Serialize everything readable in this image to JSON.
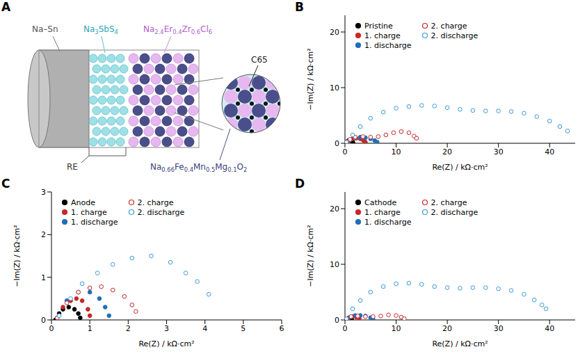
{
  "diagram": {
    "panel": "A",
    "labels": {
      "anode": "Na–Sn",
      "separator": "Na3SbS4",
      "catholyte": "Na2.4Er0.4Zr0.6Cl6",
      "carbon": "C65",
      "reference": "RE",
      "cathode": "Na0.66Fe0.4Mn0.5Mg0.1O2"
    }
  },
  "chart_data": [
    {
      "panel": "B",
      "type": "scatter",
      "x_label": "Re(Z) / kΩ·cm²",
      "y_label": "−Im(Z) / kΩ·cm²",
      "xlim": [
        0,
        45
      ],
      "xticks": [
        0,
        10,
        20,
        30,
        40
      ],
      "ylim": [
        0,
        23
      ],
      "yticks": [
        0,
        10,
        20
      ],
      "grid": false,
      "legend": "upper left",
      "series": [
        {
          "name": "Pristine",
          "color": "#000000",
          "marker": "circle",
          "x": [
            0.2,
            0.4,
            0.7,
            1.0,
            1.3,
            1.5,
            1.6
          ],
          "values": [
            0,
            0.3,
            0.5,
            0.55,
            0.45,
            0.25,
            0.05
          ]
        },
        {
          "name": "1. charge",
          "color": "#c62828",
          "marker": "circle",
          "x": [
            0.3,
            0.8,
            1.5,
            2.2,
            3,
            3.6,
            4
          ],
          "values": [
            0.1,
            0.5,
            0.8,
            0.9,
            0.8,
            0.5,
            0.2
          ]
        },
        {
          "name": "1. discharge",
          "color": "#1f6fb8",
          "marker": "circle",
          "x": [
            0.3,
            1,
            2,
            3,
            4,
            5,
            5.8,
            6.3
          ],
          "values": [
            0.1,
            0.6,
            1.0,
            1.1,
            1.0,
            0.8,
            0.5,
            0.2
          ]
        },
        {
          "name": "2. charge",
          "color": "#c62828",
          "marker": "open_circle",
          "x": [
            0.3,
            1,
            2,
            3.5,
            5,
            6.5,
            8,
            9.5,
            11,
            12.5,
            13.5,
            14
          ],
          "values": [
            0.1,
            0.7,
            1.1,
            1.2,
            1.1,
            1.2,
            1.5,
            1.9,
            2.1,
            1.9,
            1.3,
            0.9
          ]
        },
        {
          "name": "2. discharge",
          "color": "#3a9ad9",
          "marker": "open_circle",
          "x": [
            0.3,
            1.5,
            3,
            5,
            7.5,
            10,
            12.5,
            15,
            17.5,
            20,
            22.5,
            25,
            27.5,
            30,
            32.5,
            35,
            37.5,
            40,
            42,
            43.5
          ],
          "values": [
            0.2,
            1.5,
            3.0,
            4.5,
            5.6,
            6.3,
            6.6,
            6.8,
            6.7,
            6.4,
            6.1,
            5.9,
            5.8,
            5.8,
            5.7,
            5.4,
            4.8,
            4.0,
            3.0,
            2.2
          ]
        }
      ]
    },
    {
      "panel": "C",
      "type": "scatter",
      "x_label": "Re(Z) / kΩ·cm²",
      "y_label": "−Im(Z) / kΩ·cm²",
      "xlim": [
        0,
        6
      ],
      "xticks": [
        0,
        1,
        2,
        3,
        4,
        5,
        6
      ],
      "ylim": [
        0,
        3
      ],
      "yticks": [
        0,
        1,
        2,
        3
      ],
      "grid": false,
      "legend": "upper left",
      "series": [
        {
          "name": "Anode",
          "color": "#000000",
          "marker": "circle",
          "x": [
            0.1,
            0.2,
            0.3,
            0.45,
            0.6,
            0.7,
            0.75
          ],
          "values": [
            0,
            0.15,
            0.25,
            0.3,
            0.25,
            0.15,
            0.05
          ]
        },
        {
          "name": "1. charge",
          "color": "#c62828",
          "marker": "circle",
          "x": [
            0.15,
            0.3,
            0.5,
            0.65,
            0.8,
            0.95,
            1.0
          ],
          "values": [
            0.05,
            0.3,
            0.45,
            0.5,
            0.45,
            0.25,
            0.1
          ]
        },
        {
          "name": "1. discharge",
          "color": "#1f6fb8",
          "marker": "circle",
          "x": [
            0.15,
            0.4,
            0.7,
            1.0,
            1.25,
            1.4,
            1.5
          ],
          "values": [
            0.05,
            0.45,
            0.65,
            0.65,
            0.5,
            0.3,
            0.1
          ]
        },
        {
          "name": "2. charge",
          "color": "#c62828",
          "marker": "open_circle",
          "x": [
            0.15,
            0.4,
            0.7,
            1.0,
            1.3,
            1.6,
            1.9,
            2.1,
            2.2
          ],
          "values": [
            0.05,
            0.4,
            0.65,
            0.75,
            0.78,
            0.7,
            0.55,
            0.35,
            0.2
          ]
        },
        {
          "name": "2. discharge",
          "color": "#3a9ad9",
          "marker": "open_circle",
          "x": [
            0.2,
            0.5,
            0.8,
            1.2,
            1.6,
            2.1,
            2.6,
            3.1,
            3.5,
            3.8,
            4.1
          ],
          "values": [
            0.1,
            0.5,
            0.85,
            1.1,
            1.3,
            1.45,
            1.5,
            1.35,
            1.1,
            0.9,
            0.6
          ]
        }
      ]
    },
    {
      "panel": "D",
      "type": "scatter",
      "x_label": "Re(Z) / kΩ·cm²",
      "y_label": "−Im(Z) / kΩ·cm²",
      "xlim": [
        0,
        45
      ],
      "xticks": [
        0,
        10,
        20,
        30,
        40
      ],
      "ylim": [
        0,
        23
      ],
      "yticks": [
        0,
        10,
        20
      ],
      "grid": false,
      "legend": "upper left",
      "series": [
        {
          "name": "Cathode",
          "color": "#000000",
          "marker": "circle",
          "x": [
            0.3,
            0.6,
            1,
            1.3
          ],
          "values": [
            0.1,
            0.3,
            0.35,
            0.2
          ]
        },
        {
          "name": "1. charge",
          "color": "#c62828",
          "marker": "circle",
          "x": [
            0.3,
            0.8,
            1.5,
            2.2,
            2.8
          ],
          "values": [
            0.1,
            0.4,
            0.6,
            0.5,
            0.3
          ]
        },
        {
          "name": "1. discharge",
          "color": "#1f6fb8",
          "marker": "circle",
          "x": [
            0.3,
            1,
            2,
            3,
            4,
            5,
            5.5
          ],
          "values": [
            0.1,
            0.5,
            0.8,
            0.8,
            0.7,
            0.4,
            0.1
          ]
        },
        {
          "name": "2. charge",
          "color": "#c62828",
          "marker": "open_circle",
          "x": [
            0.3,
            1.2,
            2.5,
            4,
            5.5,
            7,
            8.5,
            10,
            11,
            11.6
          ],
          "values": [
            0.1,
            0.6,
            0.7,
            0.6,
            0.6,
            0.7,
            0.9,
            0.8,
            0.5,
            0.2
          ]
        },
        {
          "name": "2. discharge",
          "color": "#3a9ad9",
          "marker": "open_circle",
          "x": [
            0.3,
            1.5,
            3,
            5,
            7.5,
            10,
            12.5,
            15,
            17.5,
            20,
            22.5,
            25,
            27.5,
            30,
            32.5,
            35,
            37,
            38.5,
            39.3
          ],
          "values": [
            0.2,
            2,
            3.5,
            5,
            6,
            6.5,
            6.6,
            6.4,
            6.0,
            5.8,
            5.7,
            5.8,
            5.8,
            5.6,
            5.3,
            4.6,
            3.6,
            2.7,
            2.0
          ]
        }
      ]
    }
  ]
}
